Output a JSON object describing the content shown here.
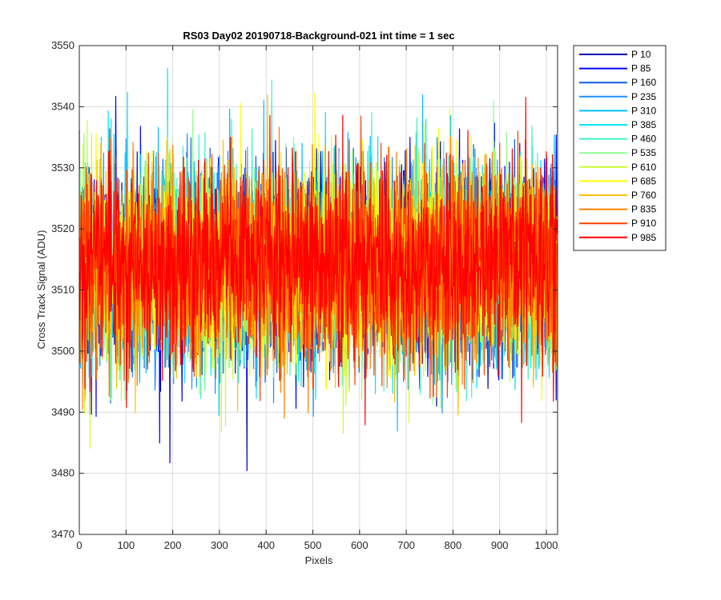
{
  "chart_data": {
    "type": "line",
    "title": "RS03 Day02 20190718-Background-021 int time = 1 sec",
    "xlabel": "Pixels",
    "ylabel": "Cross Track Signal (ADU)",
    "xlim": [
      0,
      1024
    ],
    "ylim": [
      3470,
      3550
    ],
    "xticks": [
      0,
      100,
      200,
      300,
      400,
      500,
      600,
      700,
      800,
      900,
      1000
    ],
    "yticks": [
      3470,
      3480,
      3490,
      3500,
      3510,
      3520,
      3530,
      3540,
      3550
    ],
    "grid": true,
    "legend_location": "outside-top-right",
    "noise_model": {
      "mean": 3514,
      "std": 8,
      "min": 3479,
      "max": 3549,
      "num_points": 1024
    },
    "series": [
      {
        "name": "P 10",
        "color": "#0000b0"
      },
      {
        "name": "P 85",
        "color": "#0000ff"
      },
      {
        "name": "P 160",
        "color": "#0f5fe6"
      },
      {
        "name": "P 235",
        "color": "#1e90ff"
      },
      {
        "name": "P 310",
        "color": "#00bfff"
      },
      {
        "name": "P 385",
        "color": "#00e5ff"
      },
      {
        "name": "P 460",
        "color": "#40f0c8"
      },
      {
        "name": "P 535",
        "color": "#90ff90"
      },
      {
        "name": "P 610",
        "color": "#c8ff30"
      },
      {
        "name": "P 685",
        "color": "#ffff00"
      },
      {
        "name": "P 760",
        "color": "#ffc000"
      },
      {
        "name": "P 835",
        "color": "#ff8000"
      },
      {
        "name": "P 910",
        "color": "#ff4000"
      },
      {
        "name": "P 985",
        "color": "#ff0000"
      }
    ]
  }
}
